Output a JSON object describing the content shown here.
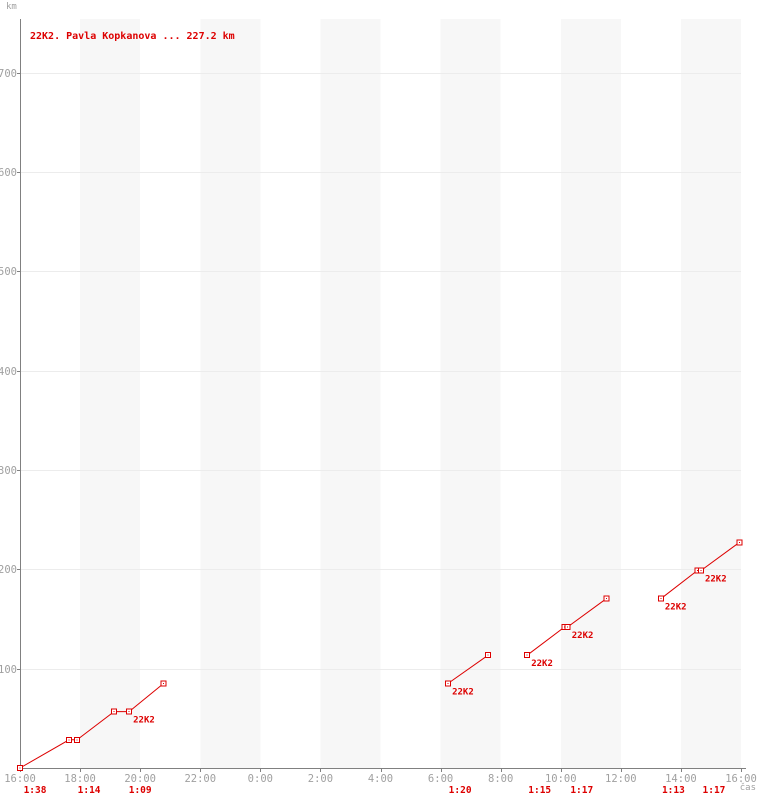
{
  "chart": {
    "title": "22K2. Pavla Kopkanova ... 227.2 km",
    "y_unit": "km",
    "x_unit": "čas"
  },
  "colors": {
    "series_red": "#dd0000",
    "axis": "#808080",
    "grid": "#ececec",
    "band": "#f7f7f7",
    "tick_text": "#a0a0a0",
    "background": "#ffffff"
  },
  "chart_data": {
    "type": "line",
    "title": "22K2. Pavla Kopkanova ... 227.2 km",
    "xlabel": "čas",
    "ylabel": "km",
    "runner_bib": "22K2",
    "runner_name": "Pavla Kopkanova",
    "total_km": 227.2,
    "lap_km": 28.4,
    "x_span_hours": 24,
    "x_start_clock": "16:00",
    "ylim": [
      0,
      754
    ],
    "grid": "horizontal-only",
    "legend": "none",
    "x_ticks": [
      {
        "h": 0,
        "label": "16:00"
      },
      {
        "h": 2,
        "label": "18:00"
      },
      {
        "h": 4,
        "label": "20:00"
      },
      {
        "h": 6,
        "label": "22:00"
      },
      {
        "h": 8,
        "label": "0:00"
      },
      {
        "h": 10,
        "label": "2:00"
      },
      {
        "h": 12,
        "label": "4:00"
      },
      {
        "h": 14,
        "label": "6:00"
      },
      {
        "h": 16,
        "label": "8:00"
      },
      {
        "h": 18,
        "label": "10:00"
      },
      {
        "h": 20,
        "label": "12:00"
      },
      {
        "h": 22,
        "label": "14:00"
      },
      {
        "h": 24,
        "label": "16:00"
      }
    ],
    "y_ticks": [
      100,
      200,
      300,
      400,
      500,
      600,
      700
    ],
    "shaded_bands_h": [
      [
        2,
        4
      ],
      [
        6,
        8
      ],
      [
        10,
        12
      ],
      [
        14,
        16
      ],
      [
        18,
        20
      ],
      [
        22,
        24
      ]
    ],
    "segments": [
      {
        "points": [
          {
            "h": 0.0,
            "km": 0.0,
            "time": "16:00"
          },
          {
            "h": 1.633,
            "km": 28.4,
            "time": "17:38"
          },
          {
            "h": 1.9,
            "km": 28.4,
            "time": "17:54"
          },
          {
            "h": 3.133,
            "km": 56.8,
            "time": "19:08"
          },
          {
            "h": 3.633,
            "km": 56.8,
            "time": "19:38",
            "label": "22K2"
          },
          {
            "h": 4.783,
            "km": 85.2,
            "time": "20:47"
          }
        ]
      },
      {
        "points": [
          {
            "h": 14.25,
            "km": 85.2,
            "time": "6:15",
            "label": "22K2"
          },
          {
            "h": 15.583,
            "km": 113.6,
            "time": "7:35"
          }
        ]
      },
      {
        "points": [
          {
            "h": 16.883,
            "km": 113.6,
            "time": "8:53",
            "label": "22K2"
          },
          {
            "h": 18.133,
            "km": 142.0,
            "time": "10:08"
          },
          {
            "h": 18.233,
            "km": 142.0,
            "time": "10:14",
            "label": "22K2"
          },
          {
            "h": 19.517,
            "km": 170.4,
            "time": "11:31"
          }
        ]
      },
      {
        "points": [
          {
            "h": 21.333,
            "km": 170.4,
            "time": "13:20",
            "label": "22K2"
          },
          {
            "h": 22.55,
            "km": 198.8,
            "time": "14:33"
          },
          {
            "h": 22.667,
            "km": 198.8,
            "time": "14:40",
            "label": "22K2"
          },
          {
            "h": 23.95,
            "km": 227.2,
            "time": "15:57"
          }
        ]
      }
    ],
    "lap_times": [
      {
        "label": "1:38",
        "mid_h": 0.5
      },
      {
        "label": "1:14",
        "mid_h": 2.3
      },
      {
        "label": "1:09",
        "mid_h": 4.0
      },
      {
        "label": "1:20",
        "mid_h": 14.65
      },
      {
        "label": "1:15",
        "mid_h": 17.3
      },
      {
        "label": "1:17",
        "mid_h": 18.7
      },
      {
        "label": "1:13",
        "mid_h": 21.75
      },
      {
        "label": "1:17",
        "mid_h": 23.1
      }
    ]
  }
}
